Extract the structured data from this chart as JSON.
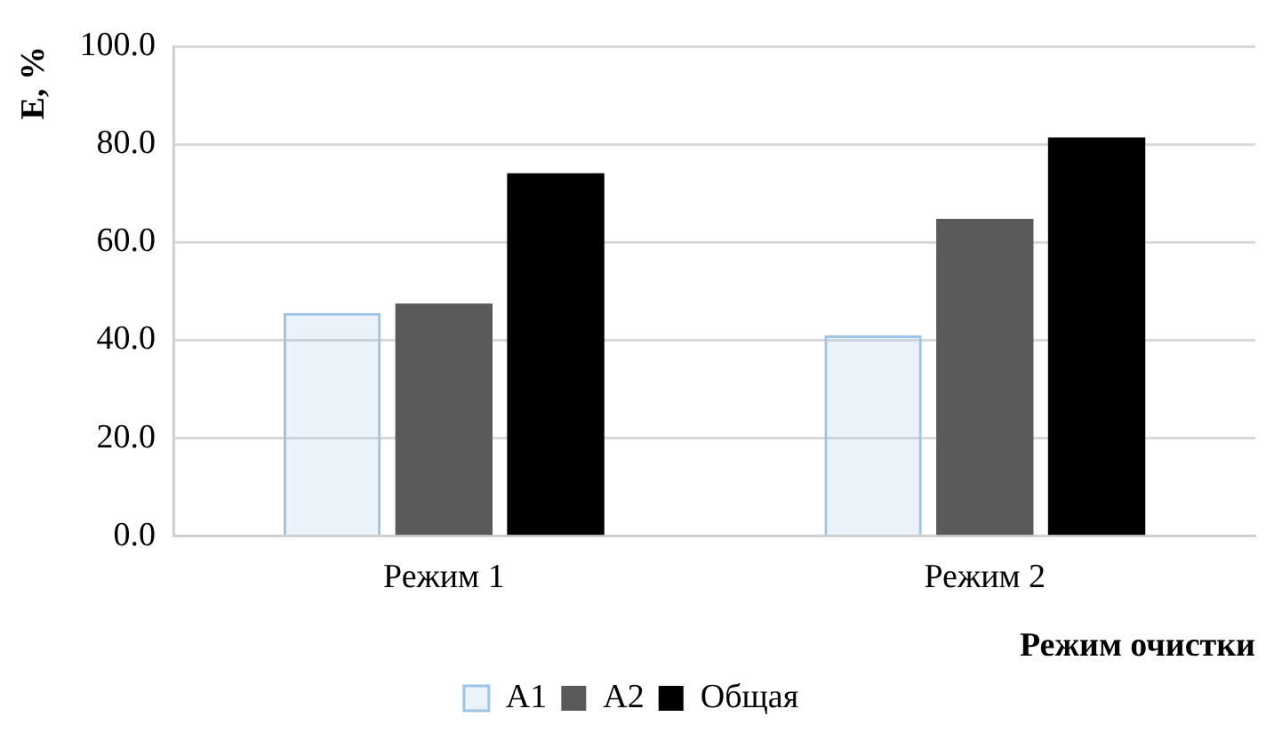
{
  "chart_data": {
    "type": "bar",
    "ylabel": "E, %",
    "xlabel": "Режим очистки",
    "categories": [
      "Режим 1",
      "Режим 2"
    ],
    "series": [
      {
        "name": "A1",
        "color": "#9dc3e6",
        "values": [
          45.6,
          41.0
        ]
      },
      {
        "name": "A2",
        "color": "#5a5a5a",
        "values": [
          47.5,
          64.8
        ]
      },
      {
        "name": "Общая",
        "color": "#000000",
        "values": [
          74.1,
          81.4
        ]
      }
    ],
    "ylim": [
      0,
      100
    ],
    "yticks": [
      {
        "value": 0,
        "label": "0.0"
      },
      {
        "value": 20,
        "label": "20.0"
      },
      {
        "value": 40,
        "label": "40.0"
      },
      {
        "value": 60,
        "label": "60.0"
      },
      {
        "value": 80,
        "label": "80.0"
      },
      {
        "value": 100,
        "label": "100.0"
      }
    ],
    "grid": "y",
    "legend": "bottom"
  }
}
